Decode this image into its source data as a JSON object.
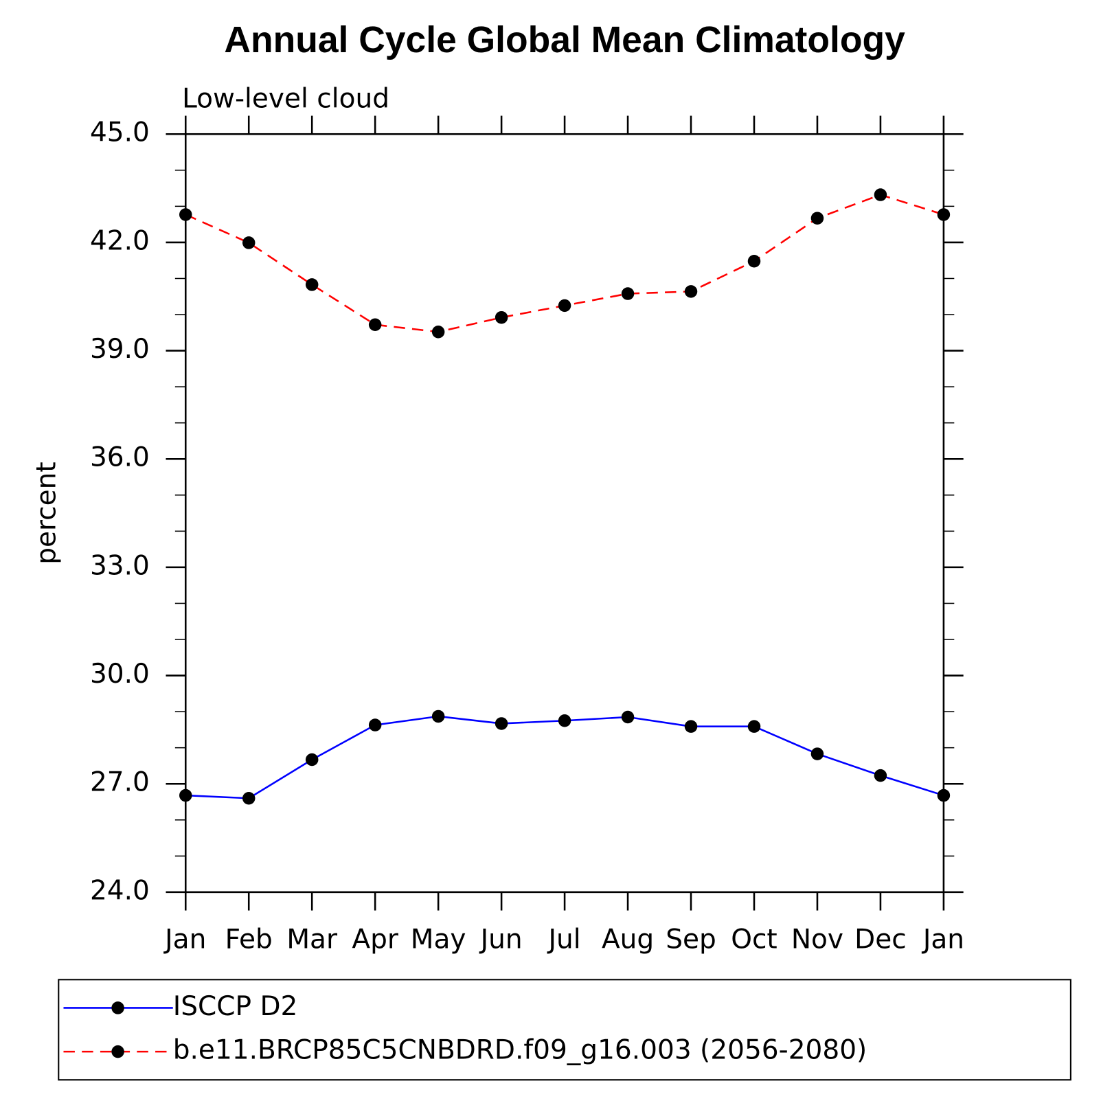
{
  "chart_data": {
    "type": "line",
    "title": "Annual Cycle Global Mean Climatology",
    "subtitle": "Low-level cloud",
    "y_label": "percent",
    "categories": [
      "Jan",
      "Feb",
      "Mar",
      "Apr",
      "May",
      "Jun",
      "Jul",
      "Aug",
      "Sep",
      "Oct",
      "Nov",
      "Dec",
      "Jan"
    ],
    "series": [
      {
        "name": "ISCCP D2",
        "color": "#0000ff",
        "linestyle": "solid",
        "marker_color": "#000000",
        "values": [
          26.68,
          26.6,
          27.67,
          28.63,
          28.87,
          28.67,
          28.75,
          28.85,
          28.59,
          28.59,
          27.83,
          27.23,
          26.68
        ]
      },
      {
        "name": "b.e11.BRCP85C5CNBDRD.f09_g16.003 (2056-2080)",
        "color": "#ff0000",
        "linestyle": "dashed",
        "marker_color": "#000000",
        "values": [
          42.77,
          41.99,
          40.83,
          39.72,
          39.52,
          39.92,
          40.25,
          40.58,
          40.64,
          41.48,
          42.67,
          43.32,
          42.77
        ]
      }
    ],
    "ylim": [
      24,
      45
    ],
    "yticks": [
      {
        "value": 24,
        "label": "24.0"
      },
      {
        "value": 27,
        "label": "27.0"
      },
      {
        "value": 30,
        "label": "30.0"
      },
      {
        "value": 33,
        "label": "33.0"
      },
      {
        "value": 36,
        "label": "36.0"
      },
      {
        "value": 39,
        "label": "39.0"
      },
      {
        "value": 42,
        "label": "42.0"
      },
      {
        "value": 45,
        "label": "45.0"
      }
    ],
    "yminorticks": [
      25,
      26,
      28,
      29,
      31,
      32,
      34,
      35,
      37,
      38,
      40,
      41,
      43,
      44
    ],
    "grid": false,
    "legend": "bottom"
  }
}
